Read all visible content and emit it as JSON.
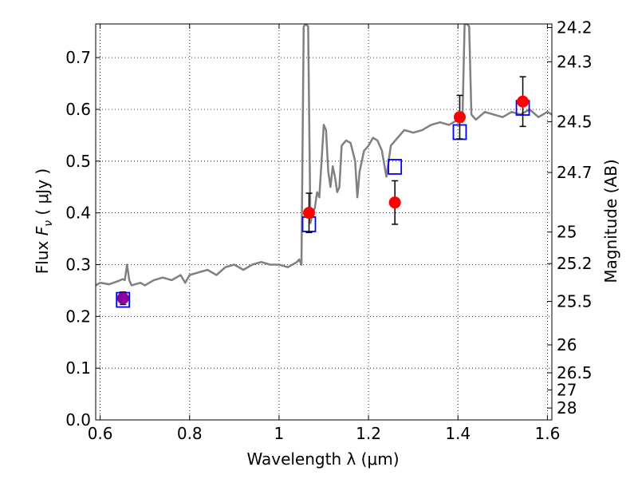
{
  "chart_data": {
    "type": "line",
    "xlabel": "Wavelength  λ (μm)",
    "ylabel_parts": {
      "pre": "Flux  ",
      "symbol": "F",
      "sub": "ν",
      "post": "  ( μJy )"
    },
    "ylabel_right": "Magnitude (AB)",
    "xlim": [
      0.59,
      1.61
    ],
    "ylim": [
      0.0,
      0.765
    ],
    "grid": true,
    "grid_style": "dotted",
    "x_ticks": [
      0.6,
      0.8,
      1.0,
      1.2,
      1.4,
      1.6
    ],
    "x_tick_labels": [
      "0.6",
      "0.8",
      "1",
      "1.2",
      "1.4",
      "1.6"
    ],
    "y_ticks": [
      0.0,
      0.1,
      0.2,
      0.3,
      0.4,
      0.5,
      0.6,
      0.7
    ],
    "y_tick_labels": [
      "0.0",
      "0.1",
      "0.2",
      "0.3",
      "0.4",
      "0.5",
      "0.6",
      "0.7"
    ],
    "right_ticks": [
      {
        "flux": 0.758,
        "label": "24.2"
      },
      {
        "flux": 0.692,
        "label": "24.3"
      },
      {
        "flux": 0.576,
        "label": "24.5"
      },
      {
        "flux": 0.478,
        "label": "24.7"
      },
      {
        "flux": 0.363,
        "label": "25"
      },
      {
        "flux": 0.302,
        "label": "25.2"
      },
      {
        "flux": 0.229,
        "label": "25.5"
      },
      {
        "flux": 0.145,
        "label": "26"
      },
      {
        "flux": 0.091,
        "label": "26.5"
      },
      {
        "flux": 0.058,
        "label": "27"
      },
      {
        "flux": 0.023,
        "label": "28"
      }
    ],
    "series": [
      {
        "kind": "model-spectrum",
        "color": "#808080",
        "x": [
          0.59,
          0.6,
          0.62,
          0.64,
          0.65,
          0.655,
          0.66,
          0.665,
          0.67,
          0.69,
          0.7,
          0.72,
          0.74,
          0.76,
          0.78,
          0.79,
          0.8,
          0.82,
          0.84,
          0.86,
          0.88,
          0.9,
          0.92,
          0.94,
          0.96,
          0.98,
          1.0,
          1.02,
          1.04,
          1.045,
          1.05,
          1.055,
          1.06,
          1.065,
          1.07,
          1.075,
          1.08,
          1.085,
          1.09,
          1.095,
          1.1,
          1.105,
          1.11,
          1.115,
          1.12,
          1.125,
          1.13,
          1.135,
          1.14,
          1.145,
          1.15,
          1.16,
          1.17,
          1.175,
          1.18,
          1.19,
          1.2,
          1.21,
          1.22,
          1.23,
          1.24,
          1.25,
          1.26,
          1.27,
          1.28,
          1.3,
          1.32,
          1.34,
          1.36,
          1.38,
          1.4,
          1.41,
          1.415,
          1.42,
          1.425,
          1.43,
          1.44,
          1.46,
          1.48,
          1.5,
          1.52,
          1.54,
          1.56,
          1.58,
          1.6,
          1.61
        ],
        "y": [
          0.26,
          0.265,
          0.262,
          0.268,
          0.272,
          0.27,
          0.3,
          0.27,
          0.26,
          0.265,
          0.26,
          0.27,
          0.275,
          0.27,
          0.28,
          0.265,
          0.28,
          0.285,
          0.29,
          0.28,
          0.295,
          0.3,
          0.29,
          0.3,
          0.305,
          0.3,
          0.3,
          0.295,
          0.305,
          0.31,
          0.3,
          0.76,
          0.765,
          0.76,
          0.38,
          0.4,
          0.41,
          0.44,
          0.43,
          0.5,
          0.57,
          0.56,
          0.48,
          0.45,
          0.49,
          0.47,
          0.44,
          0.45,
          0.53,
          0.535,
          0.54,
          0.535,
          0.5,
          0.43,
          0.48,
          0.52,
          0.53,
          0.545,
          0.54,
          0.52,
          0.47,
          0.53,
          0.54,
          0.55,
          0.56,
          0.555,
          0.56,
          0.57,
          0.575,
          0.57,
          0.58,
          0.575,
          0.765,
          0.765,
          0.76,
          0.59,
          0.58,
          0.595,
          0.59,
          0.585,
          0.595,
          0.59,
          0.6,
          0.585,
          0.595,
          0.59
        ]
      },
      {
        "kind": "model-photometry",
        "marker": "open-square",
        "color": "#0000ff",
        "x": [
          0.651,
          1.067,
          1.259,
          1.404,
          1.545
        ],
        "y": [
          0.232,
          0.378,
          0.489,
          0.556,
          0.603
        ]
      },
      {
        "kind": "observed-photometry",
        "marker": "filled-circle",
        "color": "#ff0000",
        "x": [
          0.651,
          1.067,
          1.259,
          1.404,
          1.545
        ],
        "y": [
          0.235,
          0.4,
          0.42,
          0.585,
          0.615
        ],
        "yerr": [
          0.012,
          0.038,
          0.042,
          0.042,
          0.048
        ],
        "point_colors": [
          "#8b00a0",
          "#ff0000",
          "#ff0000",
          "#ff0000",
          "#ff0000"
        ]
      }
    ]
  }
}
